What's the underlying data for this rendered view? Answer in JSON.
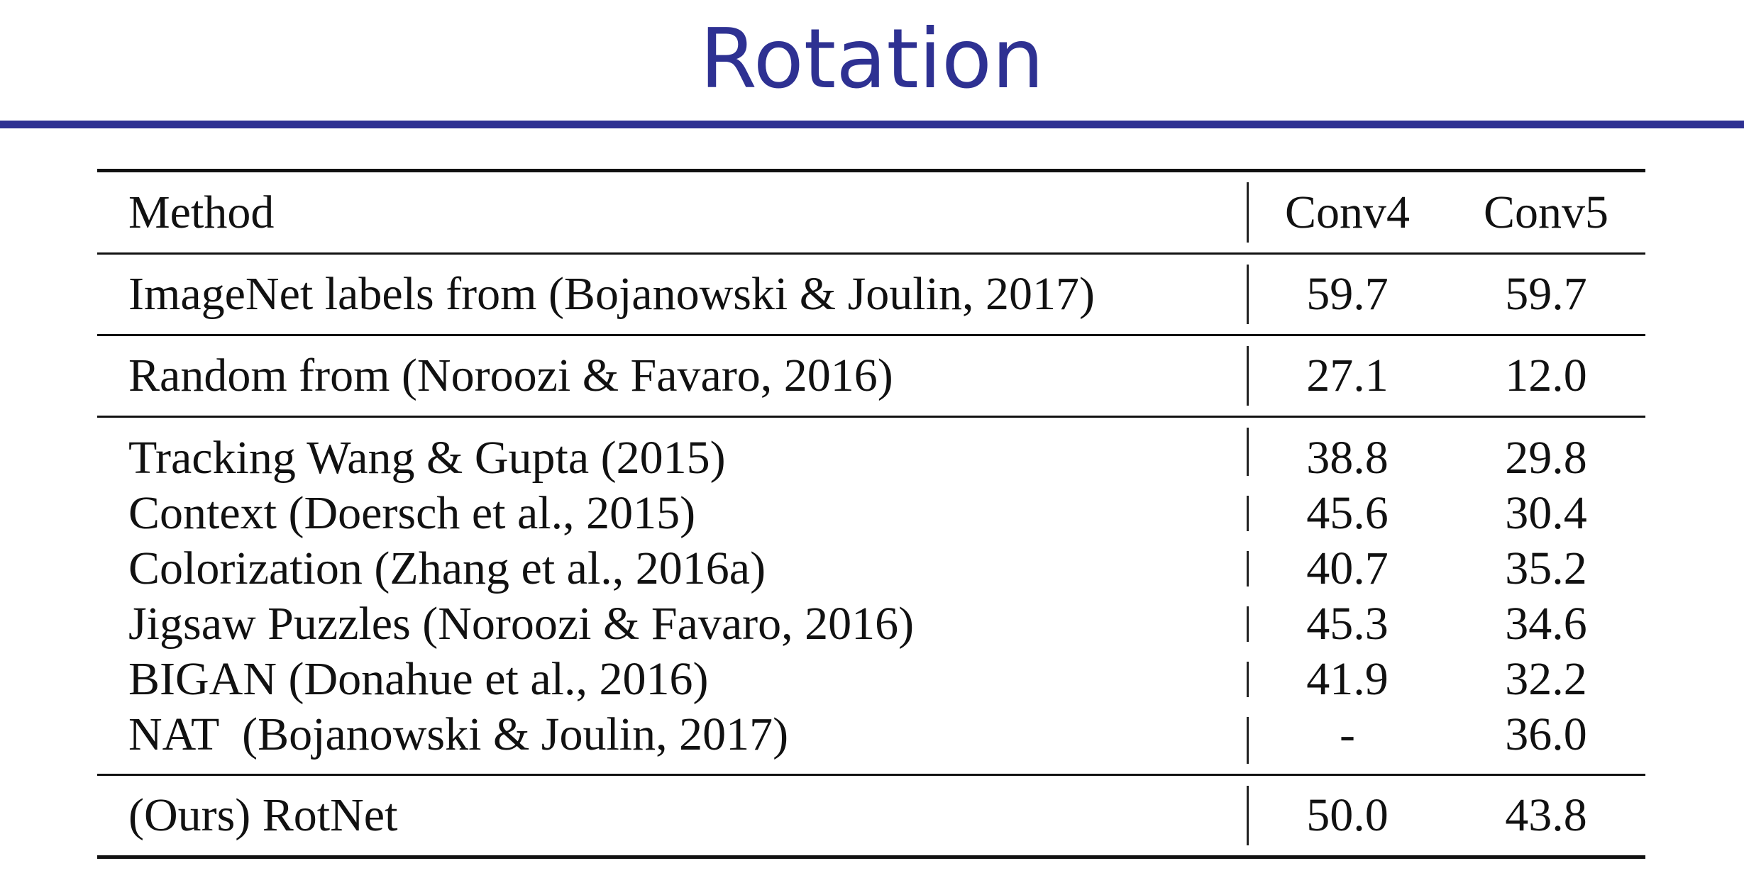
{
  "slide": {
    "title": "Rotation"
  },
  "table": {
    "headers": {
      "method": "Method",
      "conv4": "Conv4",
      "conv5": "Conv5"
    },
    "groups": [
      {
        "rows": [
          {
            "method": "ImageNet labels from (Bojanowski & Joulin, 2017)",
            "conv4": "59.7",
            "conv5": "59.7"
          }
        ]
      },
      {
        "rows": [
          {
            "method": "Random from (Noroozi & Favaro, 2016)",
            "conv4": "27.1",
            "conv5": "12.0"
          }
        ]
      },
      {
        "rows": [
          {
            "method": "Tracking Wang & Gupta (2015)",
            "conv4": "38.8",
            "conv5": "29.8"
          },
          {
            "method": "Context (Doersch et al., 2015)",
            "conv4": "45.6",
            "conv5": "30.4"
          },
          {
            "method": "Colorization (Zhang et al., 2016a)",
            "conv4": "40.7",
            "conv5": "35.2"
          },
          {
            "method": "Jigsaw Puzzles (Noroozi & Favaro, 2016)",
            "conv4": "45.3",
            "conv5": "34.6"
          },
          {
            "method": "BIGAN (Donahue et al., 2016)",
            "conv4": "41.9",
            "conv5": "32.2"
          },
          {
            "method": "NAT  (Bojanowski & Joulin, 2017)",
            "conv4": "-",
            "conv5": "36.0"
          }
        ]
      },
      {
        "rows": [
          {
            "method": "(Ours) RotNet",
            "conv4": "50.0",
            "conv5": "43.8"
          }
        ]
      }
    ]
  }
}
